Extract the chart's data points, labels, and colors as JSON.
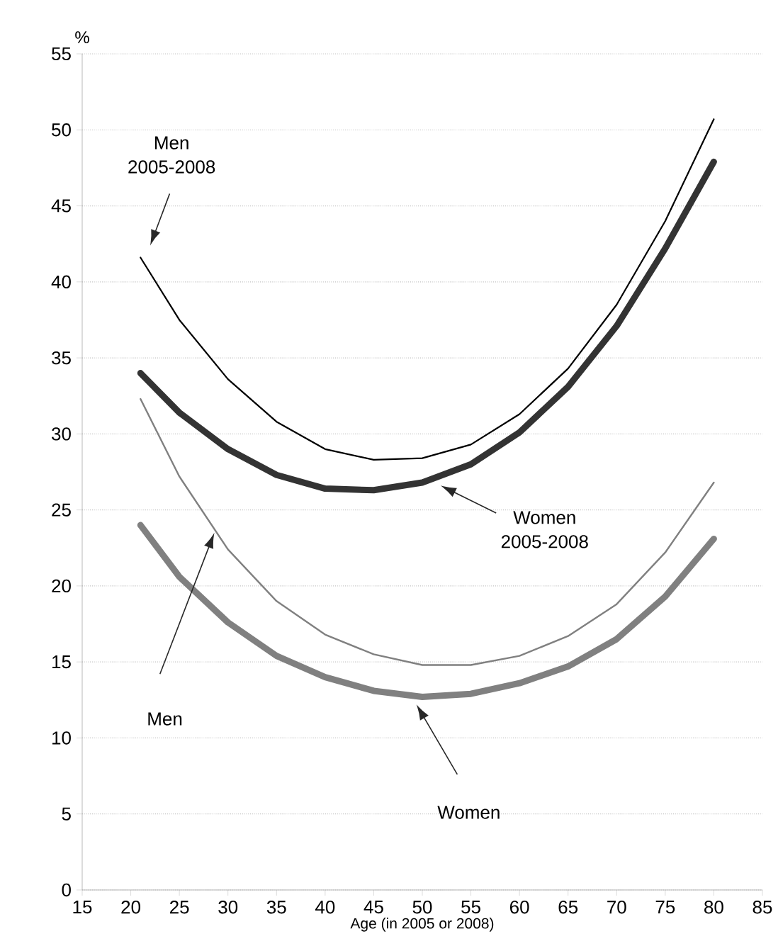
{
  "chart_data": {
    "type": "line",
    "xlabel": "Age (in 2005 or 2008)",
    "ylabel": "%",
    "x": [
      21,
      25,
      30,
      35,
      40,
      45,
      50,
      55,
      60,
      65,
      70,
      75,
      80
    ],
    "series": [
      {
        "color": "#000000",
        "values": [
          41.6,
          37.5,
          33.6,
          30.8,
          29.0,
          28.3,
          28.4,
          29.3,
          31.3,
          34.3,
          38.5,
          44.0,
          50.7
        ]
      },
      {
        "color": "#333333",
        "values": [
          34.0,
          31.4,
          29.0,
          27.3,
          26.4,
          26.3,
          26.8,
          28.0,
          30.1,
          33.1,
          37.1,
          42.2,
          47.9
        ]
      },
      {
        "color": "#808080",
        "values": [
          32.3,
          27.2,
          22.4,
          19.0,
          16.8,
          15.5,
          14.8,
          14.8,
          15.4,
          16.7,
          18.8,
          22.2,
          26.8
        ]
      },
      {
        "color": "#808080",
        "values": [
          24.0,
          20.6,
          17.6,
          15.4,
          14.0,
          13.1,
          12.7,
          12.9,
          13.6,
          14.7,
          16.5,
          19.3,
          23.1
        ]
      }
    ],
    "xlim": [
      15,
      85
    ],
    "xticks": [
      15,
      20,
      25,
      30,
      35,
      40,
      45,
      50,
      55,
      60,
      65,
      70,
      75,
      80,
      85
    ],
    "ylim": [
      0,
      55
    ],
    "yticks": [
      0,
      5,
      10,
      15,
      20,
      25,
      30,
      35,
      40,
      45,
      50,
      55
    ],
    "grid": "y",
    "marker": "none",
    "line_style": "solid",
    "annotations": [
      "Men 2005-2008",
      "Women 2005-2008",
      "Men",
      "Women"
    ]
  }
}
